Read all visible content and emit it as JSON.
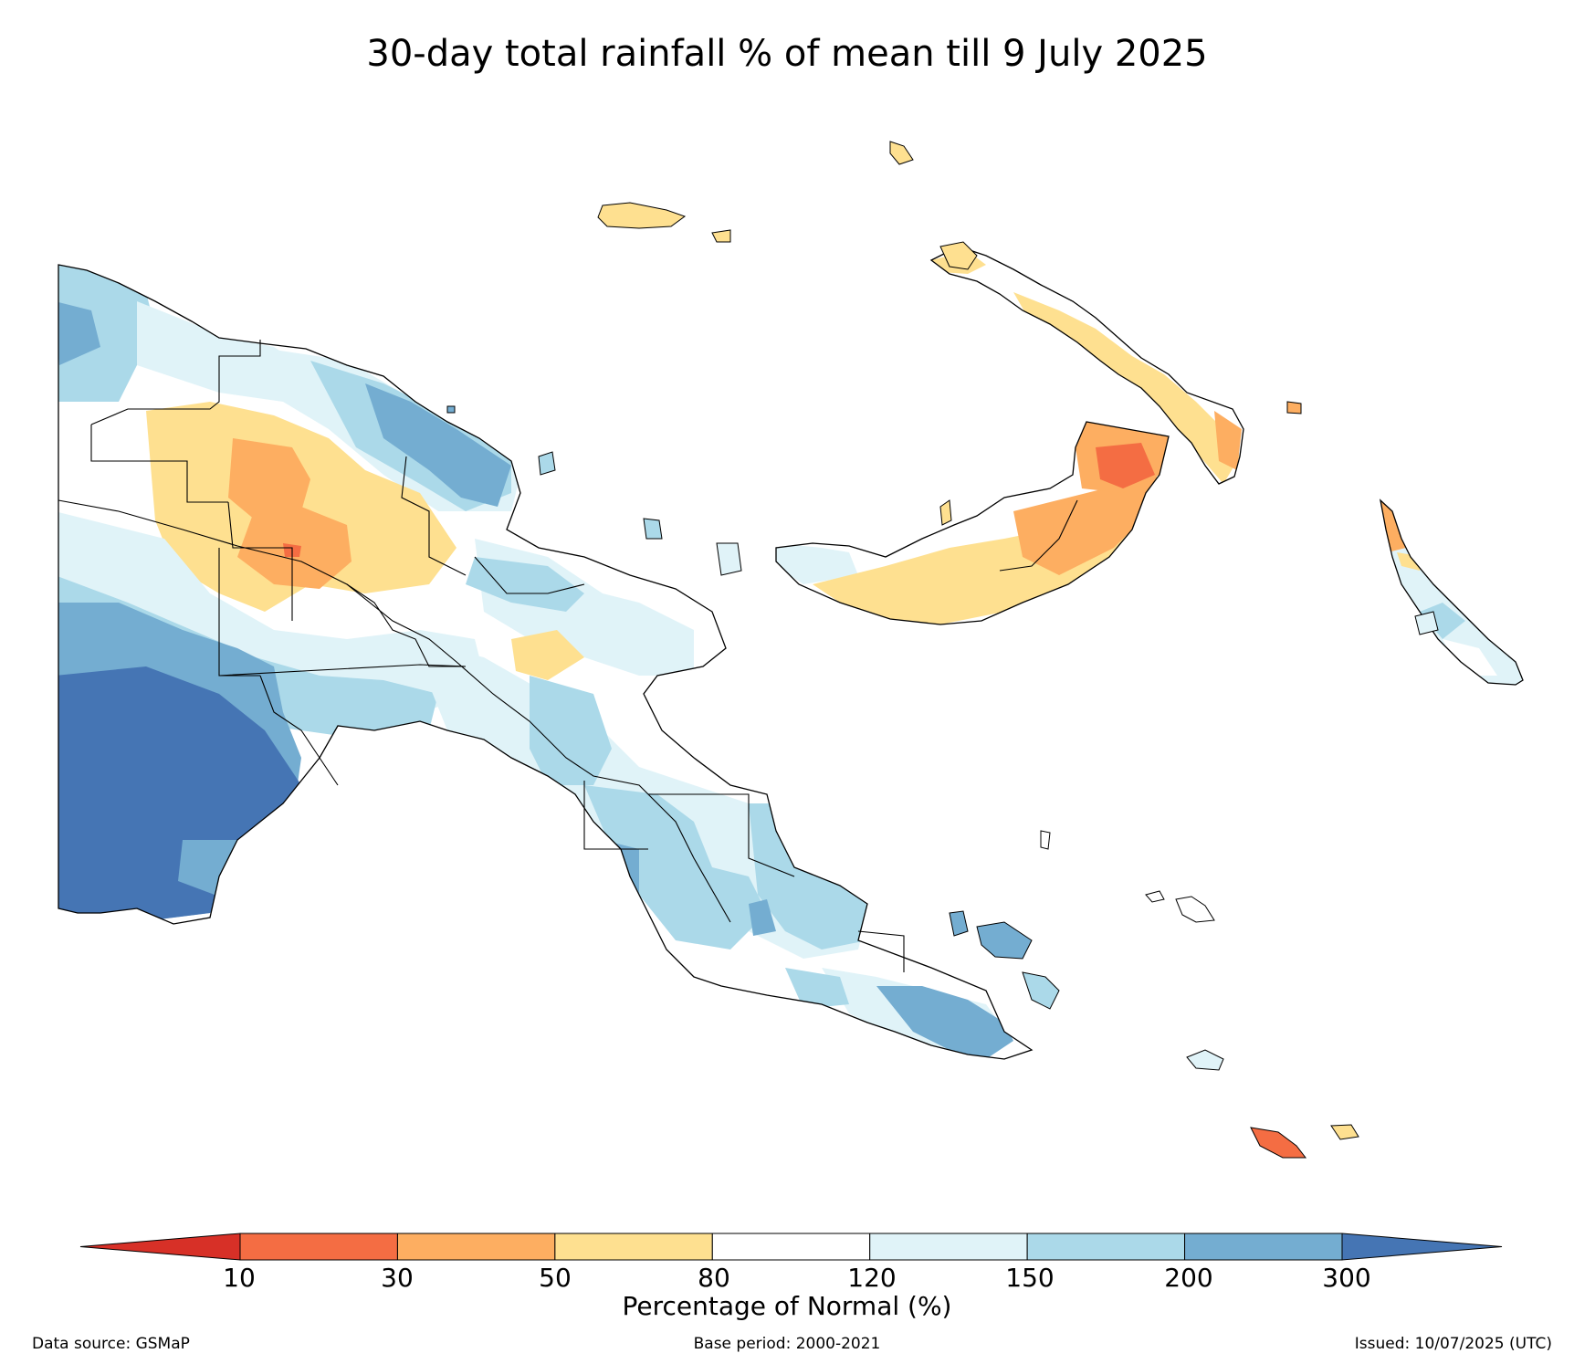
{
  "title": "30-day total rainfall % of mean till 9 July 2025",
  "colorbar": {
    "label": "Percentage of Normal (%)",
    "ticks": [
      "10",
      "30",
      "50",
      "80",
      "120",
      "150",
      "200",
      "300"
    ],
    "colors": [
      "#d73027",
      "#f46d43",
      "#fdae61",
      "#fee090",
      "#ffffff",
      "#e0f3f8",
      "#abd9e9",
      "#74add1",
      "#4575b4"
    ]
  },
  "footer": {
    "source": "Data source: GSMaP",
    "base_period": "Base period: 2000-2021",
    "issued": "Issued: 10/07/2025 (UTC)"
  }
}
